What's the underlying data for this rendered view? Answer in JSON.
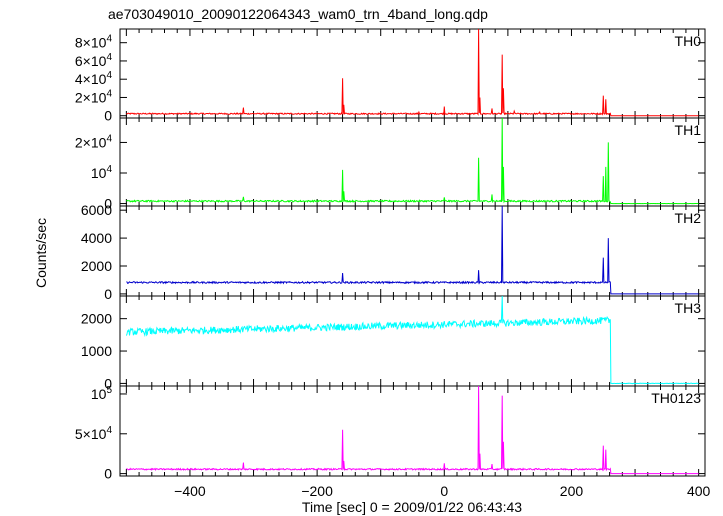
{
  "chart_data": {
    "type": "line",
    "title": "ae703049010_20090122064343_wam0_trn_4band_long.qdp",
    "xlabel": "Time [sec] 0 = 2009/01/22 06:43:43",
    "ylabel": "Counts/sec",
    "xlim": [
      -510,
      410
    ],
    "x_ticks": [
      {
        "value": -400,
        "label": "−400"
      },
      {
        "value": -200,
        "label": "−200"
      },
      {
        "value": 0,
        "label": "0"
      },
      {
        "value": 200,
        "label": "200"
      },
      {
        "value": 400,
        "label": "400"
      }
    ],
    "panels": [
      {
        "name": "TH0",
        "color": "#ff0000",
        "ylim": [
          -2500,
          95000
        ],
        "y_ticks": [
          {
            "value": 0,
            "base": "0",
            "exp": ""
          },
          {
            "value": 20000,
            "base": "2×10",
            "exp": "4"
          },
          {
            "value": 40000,
            "base": "4×10",
            "exp": "4"
          },
          {
            "value": 60000,
            "base": "6×10",
            "exp": "4"
          },
          {
            "value": 80000,
            "base": "8×10",
            "exp": "4"
          }
        ],
        "baseline": 2200,
        "noise": 700,
        "slope": 0,
        "end_time": 262,
        "post_level": 0,
        "spikes": [
          [
            -316,
            9000
          ],
          [
            -160,
            41000
          ],
          [
            -158,
            12000
          ],
          [
            -40,
            4000
          ],
          [
            0,
            10000
          ],
          [
            54,
            95000
          ],
          [
            56,
            20000
          ],
          [
            75,
            8000
          ],
          [
            91,
            67000
          ],
          [
            93,
            30000
          ],
          [
            110,
            5000
          ],
          [
            150,
            4000
          ],
          [
            250,
            22000
          ],
          [
            254,
            18000
          ],
          [
            262,
            24000
          ]
        ]
      },
      {
        "name": "TH1",
        "color": "#00ff00",
        "ylim": [
          -800,
          28000
        ],
        "y_ticks": [
          {
            "value": 0,
            "base": "0",
            "exp": ""
          },
          {
            "value": 10000,
            "base": "10",
            "exp": "4"
          },
          {
            "value": 20000,
            "base": "2×10",
            "exp": "4"
          }
        ],
        "baseline": 800,
        "noise": 250,
        "slope": 0,
        "end_time": 262,
        "post_level": 0,
        "spikes": [
          [
            -316,
            2200
          ],
          [
            -160,
            11000
          ],
          [
            -158,
            4000
          ],
          [
            0,
            2000
          ],
          [
            54,
            15000
          ],
          [
            75,
            3000
          ],
          [
            91,
            28000
          ],
          [
            93,
            12000
          ],
          [
            250,
            9000
          ],
          [
            254,
            12000
          ],
          [
            258,
            20000
          ],
          [
            262,
            19000
          ]
        ]
      },
      {
        "name": "TH2",
        "color": "#0000cc",
        "ylim": [
          -150,
          6300
        ],
        "y_ticks": [
          {
            "value": 0,
            "base": "0",
            "exp": ""
          },
          {
            "value": 2000,
            "base": "2000",
            "exp": ""
          },
          {
            "value": 4000,
            "base": "4000",
            "exp": ""
          },
          {
            "value": 6000,
            "base": "6000",
            "exp": ""
          }
        ],
        "baseline": 820,
        "noise": 60,
        "slope": 0,
        "end_time": 262,
        "post_level": 0,
        "spikes": [
          [
            -160,
            1500
          ],
          [
            54,
            1700
          ],
          [
            91,
            6300
          ],
          [
            250,
            2600
          ],
          [
            258,
            4000
          ],
          [
            262,
            3400
          ]
        ]
      },
      {
        "name": "TH3",
        "color": "#00ffff",
        "ylim": [
          -80,
          2700
        ],
        "y_ticks": [
          {
            "value": 0,
            "base": "0",
            "exp": ""
          },
          {
            "value": 1000,
            "base": "1000",
            "exp": ""
          },
          {
            "value": 2000,
            "base": "2000",
            "exp": ""
          }
        ],
        "baseline": 1820,
        "noise": 110,
        "slope": 0.47,
        "end_time": 262,
        "post_level": 0,
        "spikes": [
          [
            91,
            2700
          ]
        ]
      },
      {
        "name": "TH0123",
        "color": "#ff00ff",
        "ylim": [
          -3000,
          110000
        ],
        "y_ticks": [
          {
            "value": 0,
            "base": "0",
            "exp": ""
          },
          {
            "value": 50000,
            "base": "5×10",
            "exp": "4"
          },
          {
            "value": 100000,
            "base": "10",
            "exp": "5"
          }
        ],
        "baseline": 5500,
        "noise": 900,
        "slope": 0,
        "end_time": 262,
        "post_level": 0,
        "spikes": [
          [
            -316,
            14000
          ],
          [
            -160,
            55000
          ],
          [
            -158,
            16000
          ],
          [
            0,
            13000
          ],
          [
            54,
            110000
          ],
          [
            56,
            25000
          ],
          [
            75,
            12000
          ],
          [
            91,
            98000
          ],
          [
            93,
            40000
          ],
          [
            250,
            35000
          ],
          [
            254,
            30000
          ],
          [
            262,
            46000
          ]
        ]
      }
    ]
  }
}
